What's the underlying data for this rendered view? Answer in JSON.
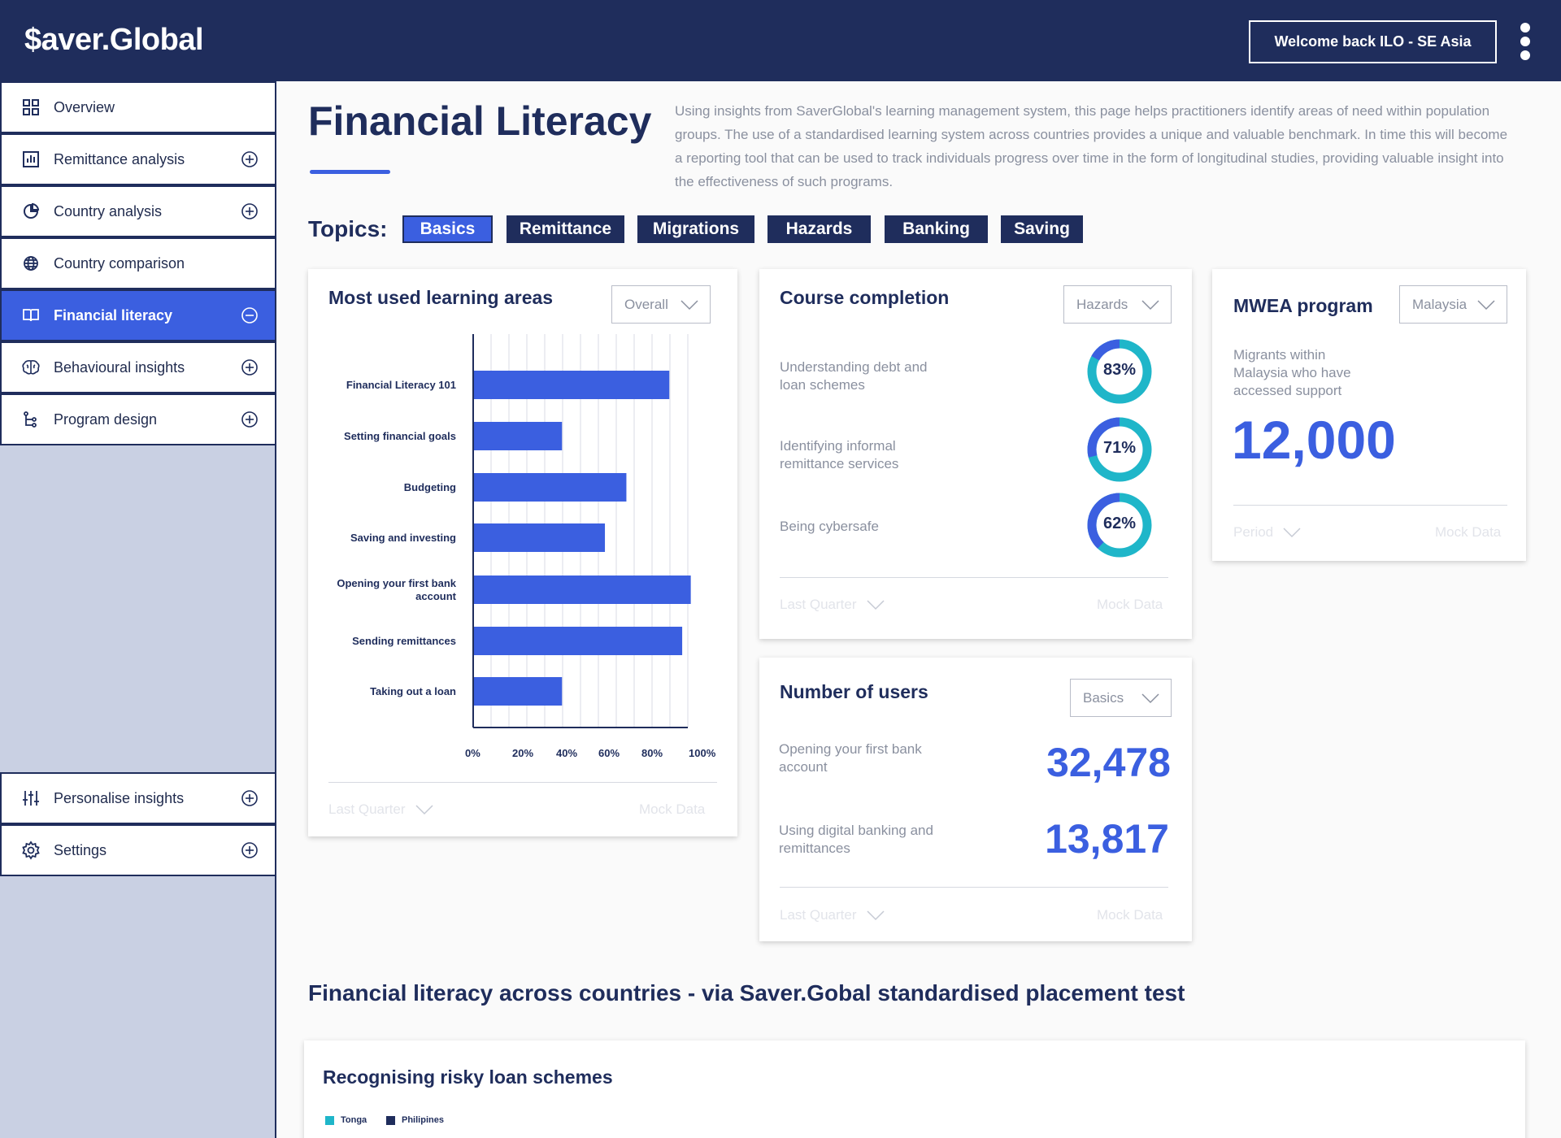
{
  "header": {
    "logo": "$aver.Global",
    "welcome": "Welcome back ILO - SE Asia"
  },
  "sidebar": {
    "items": [
      {
        "label": "Overview",
        "icon": "grid-icon",
        "toggle": "none"
      },
      {
        "label": "Remittance analysis",
        "icon": "bar-chart-icon",
        "toggle": "plus"
      },
      {
        "label": "Country analysis",
        "icon": "pie-chart-icon",
        "toggle": "plus"
      },
      {
        "label": "Country comparison",
        "icon": "globe-icon",
        "toggle": "none"
      },
      {
        "label": "Financial literacy",
        "icon": "book-icon",
        "toggle": "minus",
        "active": true
      },
      {
        "label": "Behavioural insights",
        "icon": "brain-icon",
        "toggle": "plus"
      },
      {
        "label": "Program design",
        "icon": "flow-icon",
        "toggle": "plus"
      }
    ],
    "bottom_items": [
      {
        "label": "Personalise insights",
        "icon": "sliders-icon",
        "toggle": "plus"
      },
      {
        "label": "Settings",
        "icon": "gear-icon",
        "toggle": "plus"
      }
    ]
  },
  "page": {
    "title": "Financial Literacy",
    "intro": "Using insights from SaverGlobal's learning management system, this page helps practitioners identify areas of need within population groups. The use of a standardised learning system across countries provides a unique and valuable benchmark. In time this will become a reporting tool that can be used to track individuals progress over time in the form of longitudinal studies, providing valuable insight into the effectiveness of such programs.",
    "topics_label": "Topics:",
    "topics": [
      "Basics",
      "Remittance",
      "Migrations",
      "Hazards",
      "Banking",
      "Saving"
    ],
    "active_topic": "Basics"
  },
  "learning_areas": {
    "title": "Most used learning areas",
    "dropdown": "Overall",
    "footer_period": "Last Quarter",
    "footer_source": "Mock Data"
  },
  "chart_data": {
    "type": "bar",
    "orientation": "horizontal",
    "categories": [
      "Financial Literacy 101",
      "Setting financial goals",
      "Budgeting",
      "Saving and investing",
      "Opening your first bank account",
      "Sending remittances",
      "Taking out a loan"
    ],
    "values": [
      91,
      41,
      71,
      61,
      101,
      97,
      41
    ],
    "xticks": [
      "0%",
      "20%",
      "40%",
      "60%",
      "80%",
      "100%"
    ],
    "xlim": [
      0,
      100
    ],
    "grid": true,
    "color": "#3b5fe0"
  },
  "course_completion": {
    "title": "Course completion",
    "dropdown": "Hazards",
    "items": [
      {
        "label": "Understanding debt and loan schemes",
        "value": 83,
        "text": "83%"
      },
      {
        "label": "Identifying informal remittance services",
        "value": 71,
        "text": "71%"
      },
      {
        "label": "Being cybersafe",
        "value": 62,
        "text": "62%"
      }
    ],
    "footer_period": "Last Quarter",
    "footer_source": "Mock Data"
  },
  "mwea": {
    "title": "MWEA program",
    "dropdown": "Malaysia",
    "label": "Migrants within Malaysia who have accessed support",
    "value": "12,000",
    "footer_period": "Period",
    "footer_source": "Mock Data"
  },
  "users": {
    "title": "Number of users",
    "dropdown": "Basics",
    "items": [
      {
        "label": "Opening your first bank account",
        "value": "32,478"
      },
      {
        "label": "Using digital banking and remittances",
        "value": "13,817"
      }
    ],
    "footer_period": "Last Quarter",
    "footer_source": "Mock Data"
  },
  "countries": {
    "section_title": "Financial literacy across countries - via Saver.Gobal standardised placement test",
    "card_title": "Recognising risky loan schemes",
    "legend": [
      {
        "name": "Tonga",
        "color": "#1fb6c9"
      },
      {
        "name": "Philipines",
        "color": "#1f2d5c"
      }
    ]
  },
  "colors": {
    "navy": "#1f2d5c",
    "accent": "#3b5fe0",
    "teal": "#1fb6c9",
    "sidebar_bg": "#c9d0e3"
  }
}
